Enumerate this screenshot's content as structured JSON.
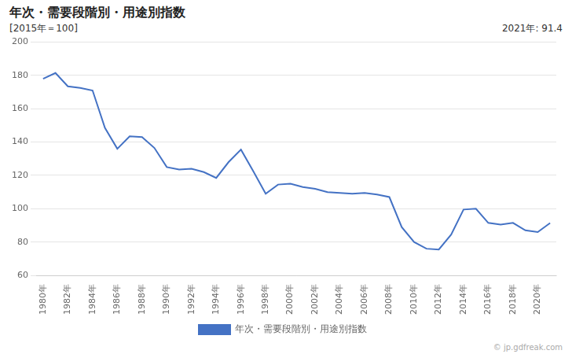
{
  "chart_data": {
    "type": "line",
    "title": "年次・需要段階別・用途別指数",
    "subtitle": "[2015年＝100]",
    "annotations": [
      "2021年: 91.4",
      "© jp.gdfreak.com"
    ],
    "x": [
      1980,
      1981,
      1982,
      1983,
      1984,
      1985,
      1986,
      1987,
      1988,
      1989,
      1990,
      1991,
      1992,
      1993,
      1994,
      1995,
      1996,
      1997,
      1998,
      1999,
      2000,
      2001,
      2002,
      2003,
      2004,
      2005,
      2006,
      2007,
      2008,
      2009,
      2010,
      2011,
      2012,
      2013,
      2014,
      2015,
      2016,
      2017,
      2018,
      2019,
      2020,
      2021
    ],
    "series": [
      {
        "name": "年次・需要段階別・用途別指数",
        "color": "#4472c4",
        "values": [
          178.0,
          181.5,
          173.5,
          172.5,
          171.0,
          148.5,
          136.0,
          143.5,
          143.0,
          136.5,
          125.0,
          123.5,
          124.0,
          122.0,
          118.5,
          128.0,
          135.5,
          122.5,
          109.0,
          114.5,
          115.0,
          113.0,
          112.0,
          110.0,
          109.5,
          109.0,
          109.5,
          108.5,
          107.0,
          89.0,
          80.0,
          76.0,
          75.5,
          84.5,
          99.5,
          100.0,
          91.5,
          90.5,
          91.5,
          87.0,
          86.0,
          91.4
        ]
      }
    ],
    "xlim": [
      1979.5,
      2021.5
    ],
    "xticks": [
      {
        "value": 1980,
        "label": "1980年"
      },
      {
        "value": 1982,
        "label": "1982年"
      },
      {
        "value": 1984,
        "label": "1984年"
      },
      {
        "value": 1986,
        "label": "1986年"
      },
      {
        "value": 1988,
        "label": "1988年"
      },
      {
        "value": 1990,
        "label": "1990年"
      },
      {
        "value": 1992,
        "label": "1992年"
      },
      {
        "value": 1994,
        "label": "1994年"
      },
      {
        "value": 1996,
        "label": "1996年"
      },
      {
        "value": 1998,
        "label": "1998年"
      },
      {
        "value": 2000,
        "label": "2000年"
      },
      {
        "value": 2002,
        "label": "2002年"
      },
      {
        "value": 2004,
        "label": "2004年"
      },
      {
        "value": 2006,
        "label": "2006年"
      },
      {
        "value": 2008,
        "label": "2008年"
      },
      {
        "value": 2010,
        "label": "2010年"
      },
      {
        "value": 2012,
        "label": "2012年"
      },
      {
        "value": 2014,
        "label": "2014年"
      },
      {
        "value": 2016,
        "label": "2016年"
      },
      {
        "value": 2018,
        "label": "2018年"
      },
      {
        "value": 2020,
        "label": "2020年"
      }
    ],
    "ylim": [
      60,
      200
    ],
    "yticks": [
      60,
      80,
      100,
      120,
      140,
      160,
      180,
      200
    ],
    "grid": "y",
    "legend": "bottom"
  }
}
